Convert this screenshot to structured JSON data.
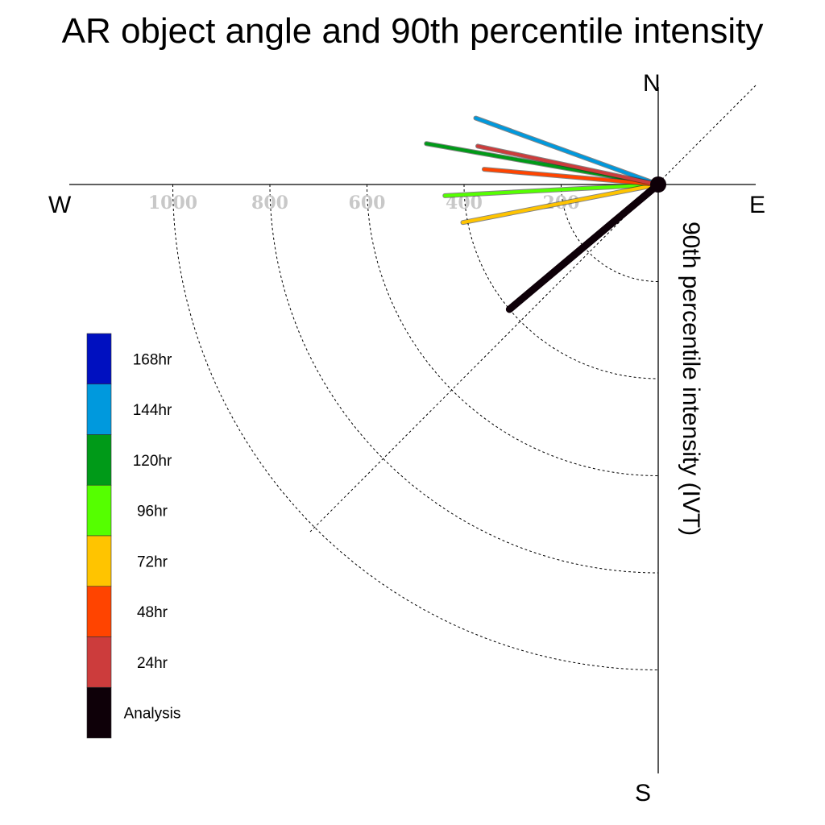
{
  "chart_data": {
    "type": "polar-vector",
    "title": "AR object angle and 90th percentile intensity",
    "ylabel": "90th percentile intensity (IVT)",
    "directions": {
      "north": "N",
      "south": "S",
      "east": "E",
      "west": "W"
    },
    "radial_ticks": [
      200,
      400,
      600,
      800,
      1000
    ],
    "radial_tick_labels": [
      "200",
      "400",
      "600",
      "800",
      "1000"
    ],
    "rlim": [
      0,
      1000
    ],
    "grid": true,
    "legend_position": "left",
    "series": [
      {
        "name": "168hr",
        "color": "#0010c0",
        "angle_deg": null,
        "intensity": null
      },
      {
        "name": "144hr",
        "color": "#0099dd",
        "angle_deg": 290,
        "intensity": 400
      },
      {
        "name": "120hr",
        "color": "#009a18",
        "angle_deg": 280,
        "intensity": 485
      },
      {
        "name": "96hr",
        "color": "#55ff00",
        "angle_deg": 267,
        "intensity": 440
      },
      {
        "name": "72hr",
        "color": "#ffc400",
        "angle_deg": 259,
        "intensity": 410
      },
      {
        "name": "48hr",
        "color": "#ff4400",
        "angle_deg": 275,
        "intensity": 360
      },
      {
        "name": "24hr",
        "color": "#cc3c3c",
        "angle_deg": 282,
        "intensity": 380
      },
      {
        "name": "Analysis",
        "color": "#0e0008",
        "angle_deg": 230,
        "intensity": 400
      }
    ]
  }
}
